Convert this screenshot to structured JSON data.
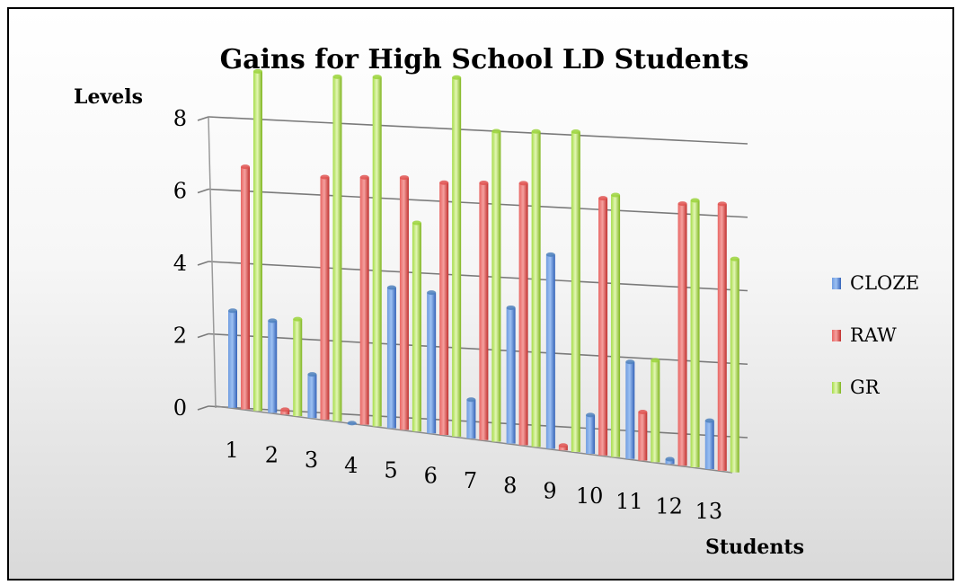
{
  "chart_data": {
    "type": "bar",
    "title": "Gains for High School LD Students",
    "xlabel": "Students",
    "ylabel": "Levels",
    "ylim": [
      0,
      8
    ],
    "yticks": [
      "0",
      "2",
      "4",
      "6",
      "8"
    ],
    "categories": [
      "1",
      "2",
      "3",
      "4",
      "5",
      "6",
      "7",
      "8",
      "9",
      "10",
      "11",
      "12",
      "13"
    ],
    "series": [
      {
        "name": "CLOZE",
        "color": "#4f81bd",
        "values": [
          2.0,
          1.9,
          0.9,
          0.0,
          2.9,
          2.9,
          0.8,
          2.8,
          4.0,
          0.8,
          2.0,
          0.1,
          1.0
        ]
      },
      {
        "name": "RAW",
        "color": "#e05552",
        "values": [
          5.0,
          0.1,
          5.0,
          5.1,
          5.2,
          5.2,
          5.3,
          5.4,
          0.1,
          5.3,
          1.0,
          5.4,
          5.5
        ]
      },
      {
        "name": "GR",
        "color": "#9bd33c",
        "values": [
          7.0,
          2.0,
          7.1,
          7.2,
          4.3,
          7.4,
          6.4,
          6.5,
          6.6,
          5.4,
          2.1,
          5.5,
          4.4
        ]
      }
    ],
    "grid": true,
    "legend": "right",
    "style": "3d-clustered-column"
  }
}
